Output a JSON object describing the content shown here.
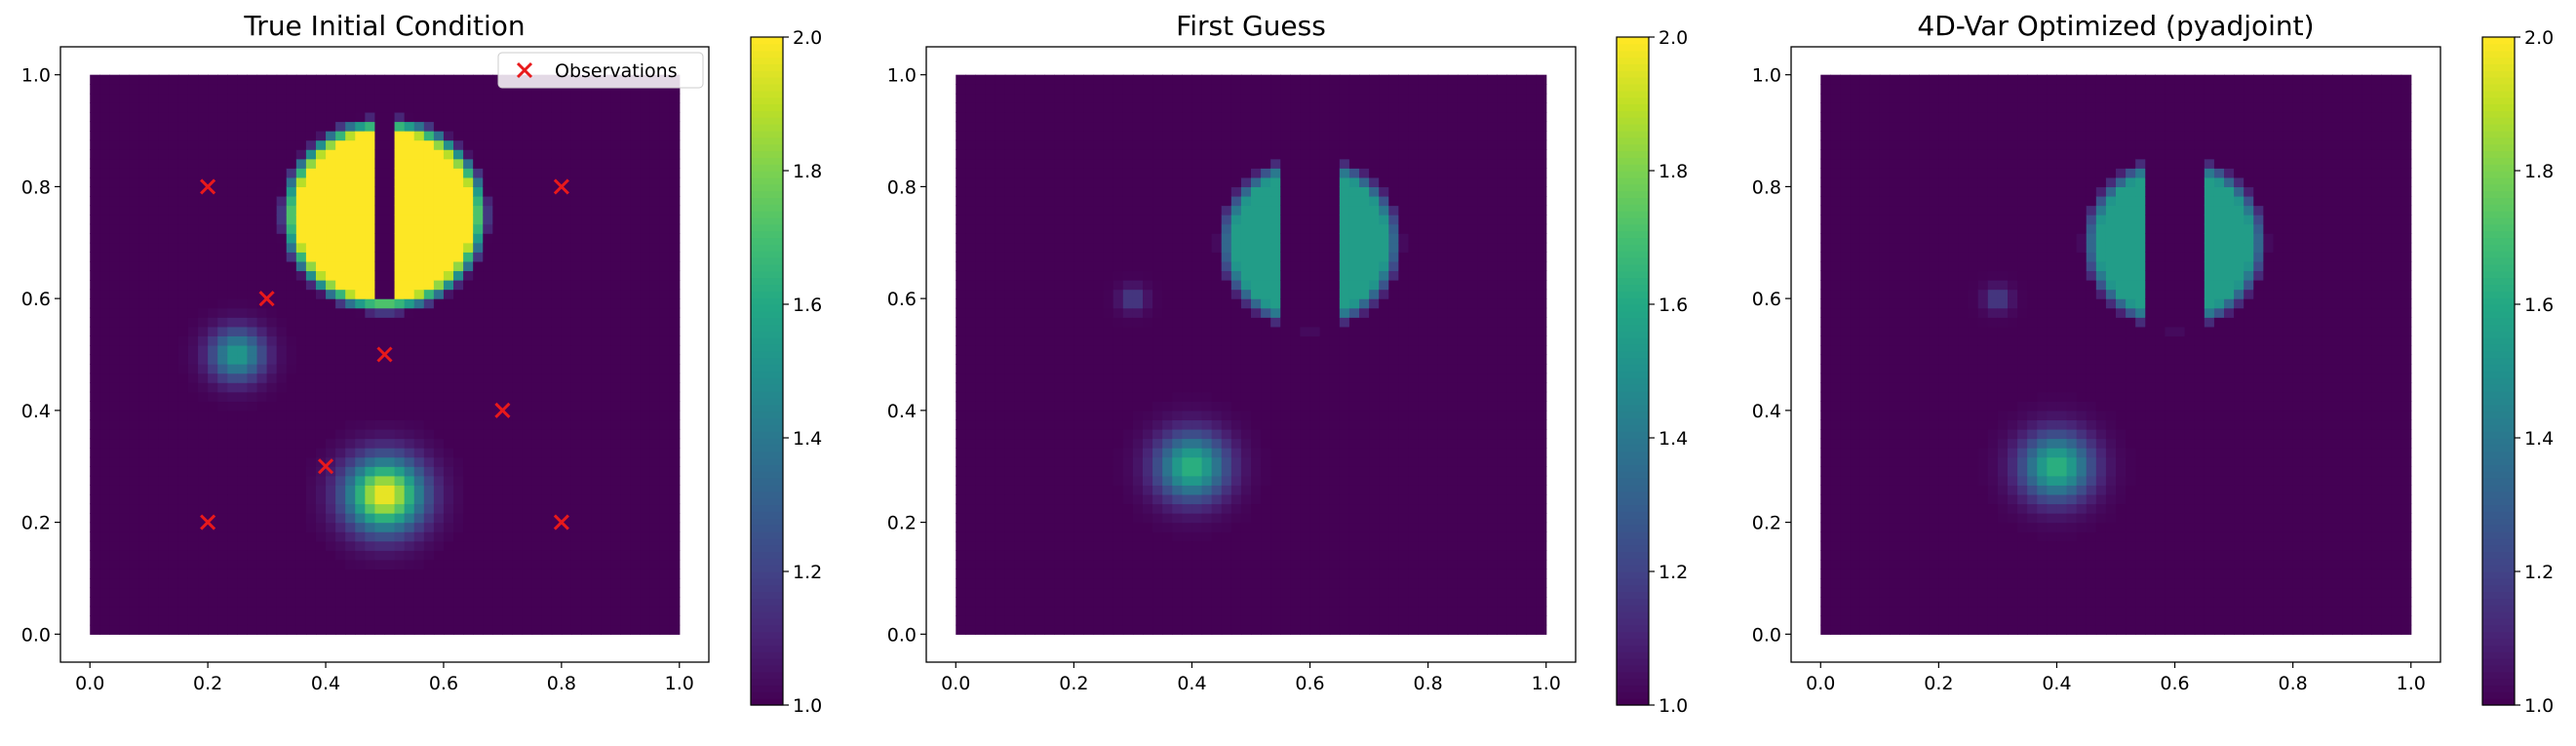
{
  "chart_data": [
    {
      "type": "heatmap",
      "title": "True Initial Condition",
      "xlabel": "",
      "ylabel": "",
      "xlim": [
        -0.05,
        1.05
      ],
      "ylim": [
        -0.05,
        1.05
      ],
      "xticks": [
        "0.0",
        "0.2",
        "0.4",
        "0.6",
        "0.8",
        "1.0"
      ],
      "yticks": [
        "0.0",
        "0.2",
        "0.4",
        "0.6",
        "0.8",
        "1.0"
      ],
      "colormap": "viridis",
      "clim": [
        1.0,
        2.0
      ],
      "colorbar_ticks": [
        "1.0",
        "1.2",
        "1.4",
        "1.6",
        "1.8",
        "2.0"
      ],
      "background_value": 1.0,
      "features": [
        {
          "kind": "gaussian_bump",
          "center": [
            0.5,
            0.25
          ],
          "radius": 0.14,
          "peak": 2.0
        },
        {
          "kind": "gaussian_bump",
          "center": [
            0.25,
            0.5
          ],
          "radius": 0.1,
          "peak": 1.55
        },
        {
          "kind": "slotted_cylinder",
          "center": [
            0.5,
            0.75
          ],
          "radius": 0.15,
          "value": 2.0,
          "slot_x": [
            0.475,
            0.525
          ],
          "slot_bottom": 0.6
        }
      ],
      "series": [
        {
          "name": "Observations",
          "marker": "x",
          "color": "#e8191b",
          "x": [
            0.2,
            0.8,
            0.3,
            0.5,
            0.7,
            0.4,
            0.2,
            0.8
          ],
          "y": [
            0.8,
            0.8,
            0.6,
            0.5,
            0.4,
            0.3,
            0.2,
            0.2
          ]
        }
      ],
      "legend": {
        "placement": "upper right",
        "entries": [
          "Observations"
        ]
      }
    },
    {
      "type": "heatmap",
      "title": "First Guess",
      "xlabel": "",
      "ylabel": "",
      "xlim": [
        -0.05,
        1.05
      ],
      "ylim": [
        -0.05,
        1.05
      ],
      "xticks": [
        "0.0",
        "0.2",
        "0.4",
        "0.6",
        "0.8",
        "1.0"
      ],
      "yticks": [
        "0.0",
        "0.2",
        "0.4",
        "0.6",
        "0.8",
        "1.0"
      ],
      "colormap": "viridis",
      "clim": [
        1.0,
        2.0
      ],
      "colorbar_ticks": [
        "1.0",
        "1.2",
        "1.4",
        "1.6",
        "1.8",
        "2.0"
      ],
      "background_value": 1.0,
      "features": [
        {
          "kind": "gaussian_bump",
          "center": [
            0.4,
            0.3
          ],
          "radius": 0.13,
          "peak": 1.65
        },
        {
          "kind": "gaussian_bump",
          "center": [
            0.3,
            0.6
          ],
          "radius": 0.05,
          "peak": 1.2
        },
        {
          "kind": "slotted_cylinder",
          "center": [
            0.6,
            0.7
          ],
          "radius": 0.13,
          "value": 1.55,
          "slot_x": [
            0.55,
            0.65
          ],
          "slot_bottom": 0.55
        }
      ]
    },
    {
      "type": "heatmap",
      "title": "4D-Var Optimized (pyadjoint)",
      "xlabel": "",
      "ylabel": "",
      "xlim": [
        -0.05,
        1.05
      ],
      "ylim": [
        -0.05,
        1.05
      ],
      "xticks": [
        "0.0",
        "0.2",
        "0.4",
        "0.6",
        "0.8",
        "1.0"
      ],
      "yticks": [
        "0.0",
        "0.2",
        "0.4",
        "0.6",
        "0.8",
        "1.0"
      ],
      "colormap": "viridis",
      "clim": [
        1.0,
        2.0
      ],
      "colorbar_ticks": [
        "1.0",
        "1.2",
        "1.4",
        "1.6",
        "1.8",
        "2.0"
      ],
      "background_value": 1.0,
      "features": [
        {
          "kind": "gaussian_bump",
          "center": [
            0.4,
            0.3
          ],
          "radius": 0.13,
          "peak": 1.65
        },
        {
          "kind": "gaussian_bump",
          "center": [
            0.3,
            0.6
          ],
          "radius": 0.05,
          "peak": 1.2
        },
        {
          "kind": "slotted_cylinder",
          "center": [
            0.6,
            0.7
          ],
          "radius": 0.13,
          "value": 1.55,
          "slot_x": [
            0.55,
            0.65
          ],
          "slot_bottom": 0.55
        }
      ]
    }
  ]
}
